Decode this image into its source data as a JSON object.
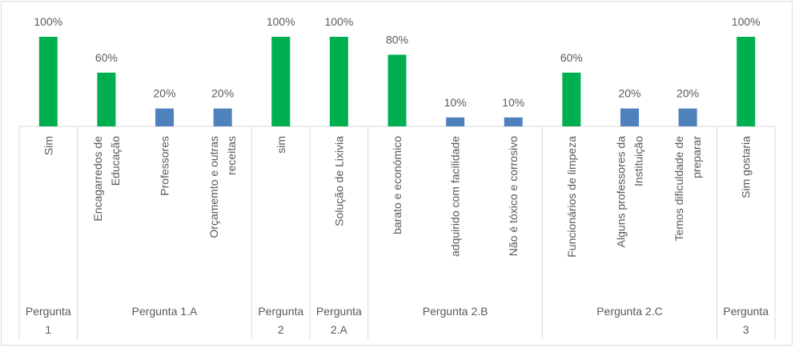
{
  "chart_data": {
    "type": "bar",
    "title": "",
    "xlabel": "",
    "ylabel": "",
    "ylim": [
      0,
      100
    ],
    "grid": false,
    "legend": "none",
    "value_format": "percent",
    "colors": {
      "high": "#00B050",
      "low": "#4F81BD"
    },
    "groups": [
      {
        "label": "Pergunta 1",
        "label_lines": [
          "Pergunta",
          "1"
        ],
        "categories": [
          {
            "label": "Sim",
            "lines": [
              "Sim"
            ],
            "value": 100,
            "value_label": "100%",
            "color": "#00B050"
          }
        ]
      },
      {
        "label": "Pergunta 1.A",
        "label_lines": [
          "Pergunta 1.A"
        ],
        "categories": [
          {
            "label": "Encagarredos de Educação",
            "lines": [
              "Encagarredos de",
              "Educação"
            ],
            "value": 60,
            "value_label": "60%",
            "color": "#00B050"
          },
          {
            "label": "Professores",
            "lines": [
              "Professores"
            ],
            "value": 20,
            "value_label": "20%",
            "color": "#4F81BD"
          },
          {
            "label": "Orçamemto e outras receitas",
            "lines": [
              "Orçamemto e outras",
              "receitas"
            ],
            "value": 20,
            "value_label": "20%",
            "color": "#4F81BD"
          }
        ]
      },
      {
        "label": "Pergunta 2",
        "label_lines": [
          "Pergunta",
          "2"
        ],
        "categories": [
          {
            "label": "sim",
            "lines": [
              "sim"
            ],
            "value": 100,
            "value_label": "100%",
            "color": "#00B050"
          }
        ]
      },
      {
        "label": "Pergunta 2.A",
        "label_lines": [
          "Pergunta",
          "2.A"
        ],
        "categories": [
          {
            "label": "Solução de Lixivia",
            "lines": [
              "Solução de Lixivia"
            ],
            "value": 100,
            "value_label": "100%",
            "color": "#00B050"
          }
        ]
      },
      {
        "label": "Pergunta 2.B",
        "label_lines": [
          "Pergunta 2.B"
        ],
        "categories": [
          {
            "label": "barato e económico",
            "lines": [
              "barato e económico"
            ],
            "value": 80,
            "value_label": "80%",
            "color": "#00B050"
          },
          {
            "label": "adquirido com facilidade",
            "lines": [
              "adquirido com facilidade"
            ],
            "value": 10,
            "value_label": "10%",
            "color": "#4F81BD"
          },
          {
            "label": "Não é tóxico e corrosivo",
            "lines": [
              "Não é tóxico e corrosivo"
            ],
            "value": 10,
            "value_label": "10%",
            "color": "#4F81BD"
          }
        ]
      },
      {
        "label": "Pergunta 2.C",
        "label_lines": [
          "Pergunta 2.C"
        ],
        "categories": [
          {
            "label": "Funcionários de limpeza",
            "lines": [
              "Funcionários de limpeza"
            ],
            "value": 60,
            "value_label": "60%",
            "color": "#00B050"
          },
          {
            "label": "Alguns professores da Instituição",
            "lines": [
              "Alguns professores da",
              "Instituição"
            ],
            "value": 20,
            "value_label": "20%",
            "color": "#4F81BD"
          },
          {
            "label": "Temos dificuldade de preparar",
            "lines": [
              "Temos dificuldade de",
              "preparar"
            ],
            "value": 20,
            "value_label": "20%",
            "color": "#4F81BD"
          }
        ]
      },
      {
        "label": "Pergunta 3",
        "label_lines": [
          "Pergunta",
          "3"
        ],
        "categories": [
          {
            "label": "Sim gostaria",
            "lines": [
              "Sim gostaria"
            ],
            "value": 100,
            "value_label": "100%",
            "color": "#00B050"
          }
        ]
      }
    ]
  }
}
